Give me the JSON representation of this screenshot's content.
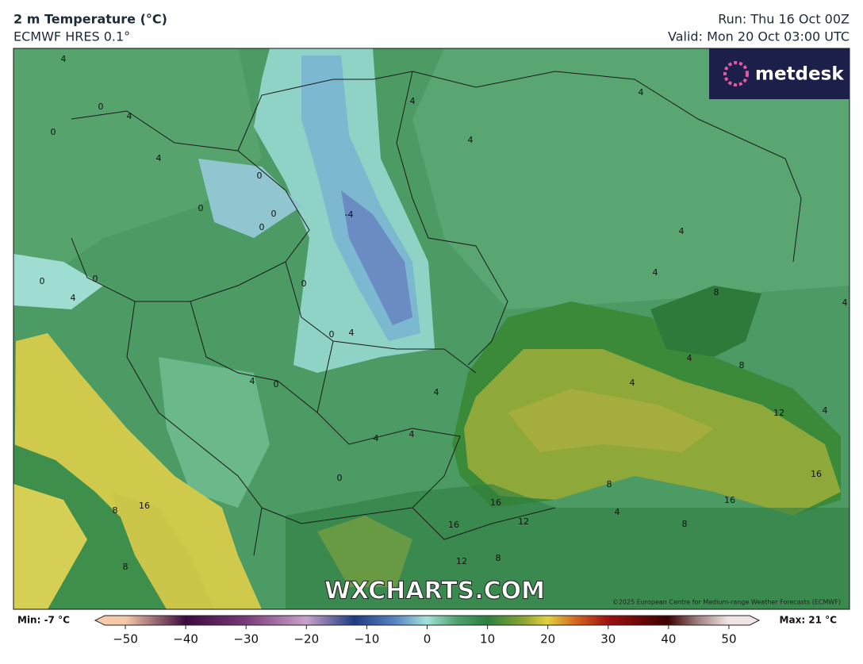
{
  "header": {
    "title": "2 m Temperature (°C)",
    "model": "ECMWF HRES 0.1°",
    "run": "Run: Thu 16 Oct 00Z",
    "valid": "Valid: Mon 20 Oct 03:00 UTC"
  },
  "logo": "metdesk",
  "watermark": "WXCHARTS.COM",
  "copyright": "©2025 European Centre for Medium-range Weather Forecasts (ECMWF)",
  "contour_labels": [
    "4",
    "0",
    "4",
    "0",
    "4",
    "0",
    "0",
    "0",
    "0",
    "-4",
    "4",
    "4",
    "4",
    "4",
    "4",
    "0",
    "4",
    "0",
    "0",
    "0",
    "4",
    "4",
    "0",
    "4",
    "4",
    "8",
    "8",
    "8",
    "12",
    "4",
    "16",
    "16",
    "16",
    "12",
    "16",
    "8",
    "8",
    "8",
    "4",
    "16",
    "4",
    "12",
    "8",
    "0",
    "4",
    "4",
    "4"
  ],
  "colorbar": {
    "min_label": "Min: -7 °C",
    "max_label": "Max: 21 °C",
    "lim": [
      -55,
      55
    ],
    "ticks": [
      {
        "value": -50,
        "label": "−50"
      },
      {
        "value": -40,
        "label": "−40"
      },
      {
        "value": -30,
        "label": "−30"
      },
      {
        "value": -20,
        "label": "−20"
      },
      {
        "value": -10,
        "label": "−10"
      },
      0,
      10,
      20,
      30,
      40,
      50
    ]
  }
}
